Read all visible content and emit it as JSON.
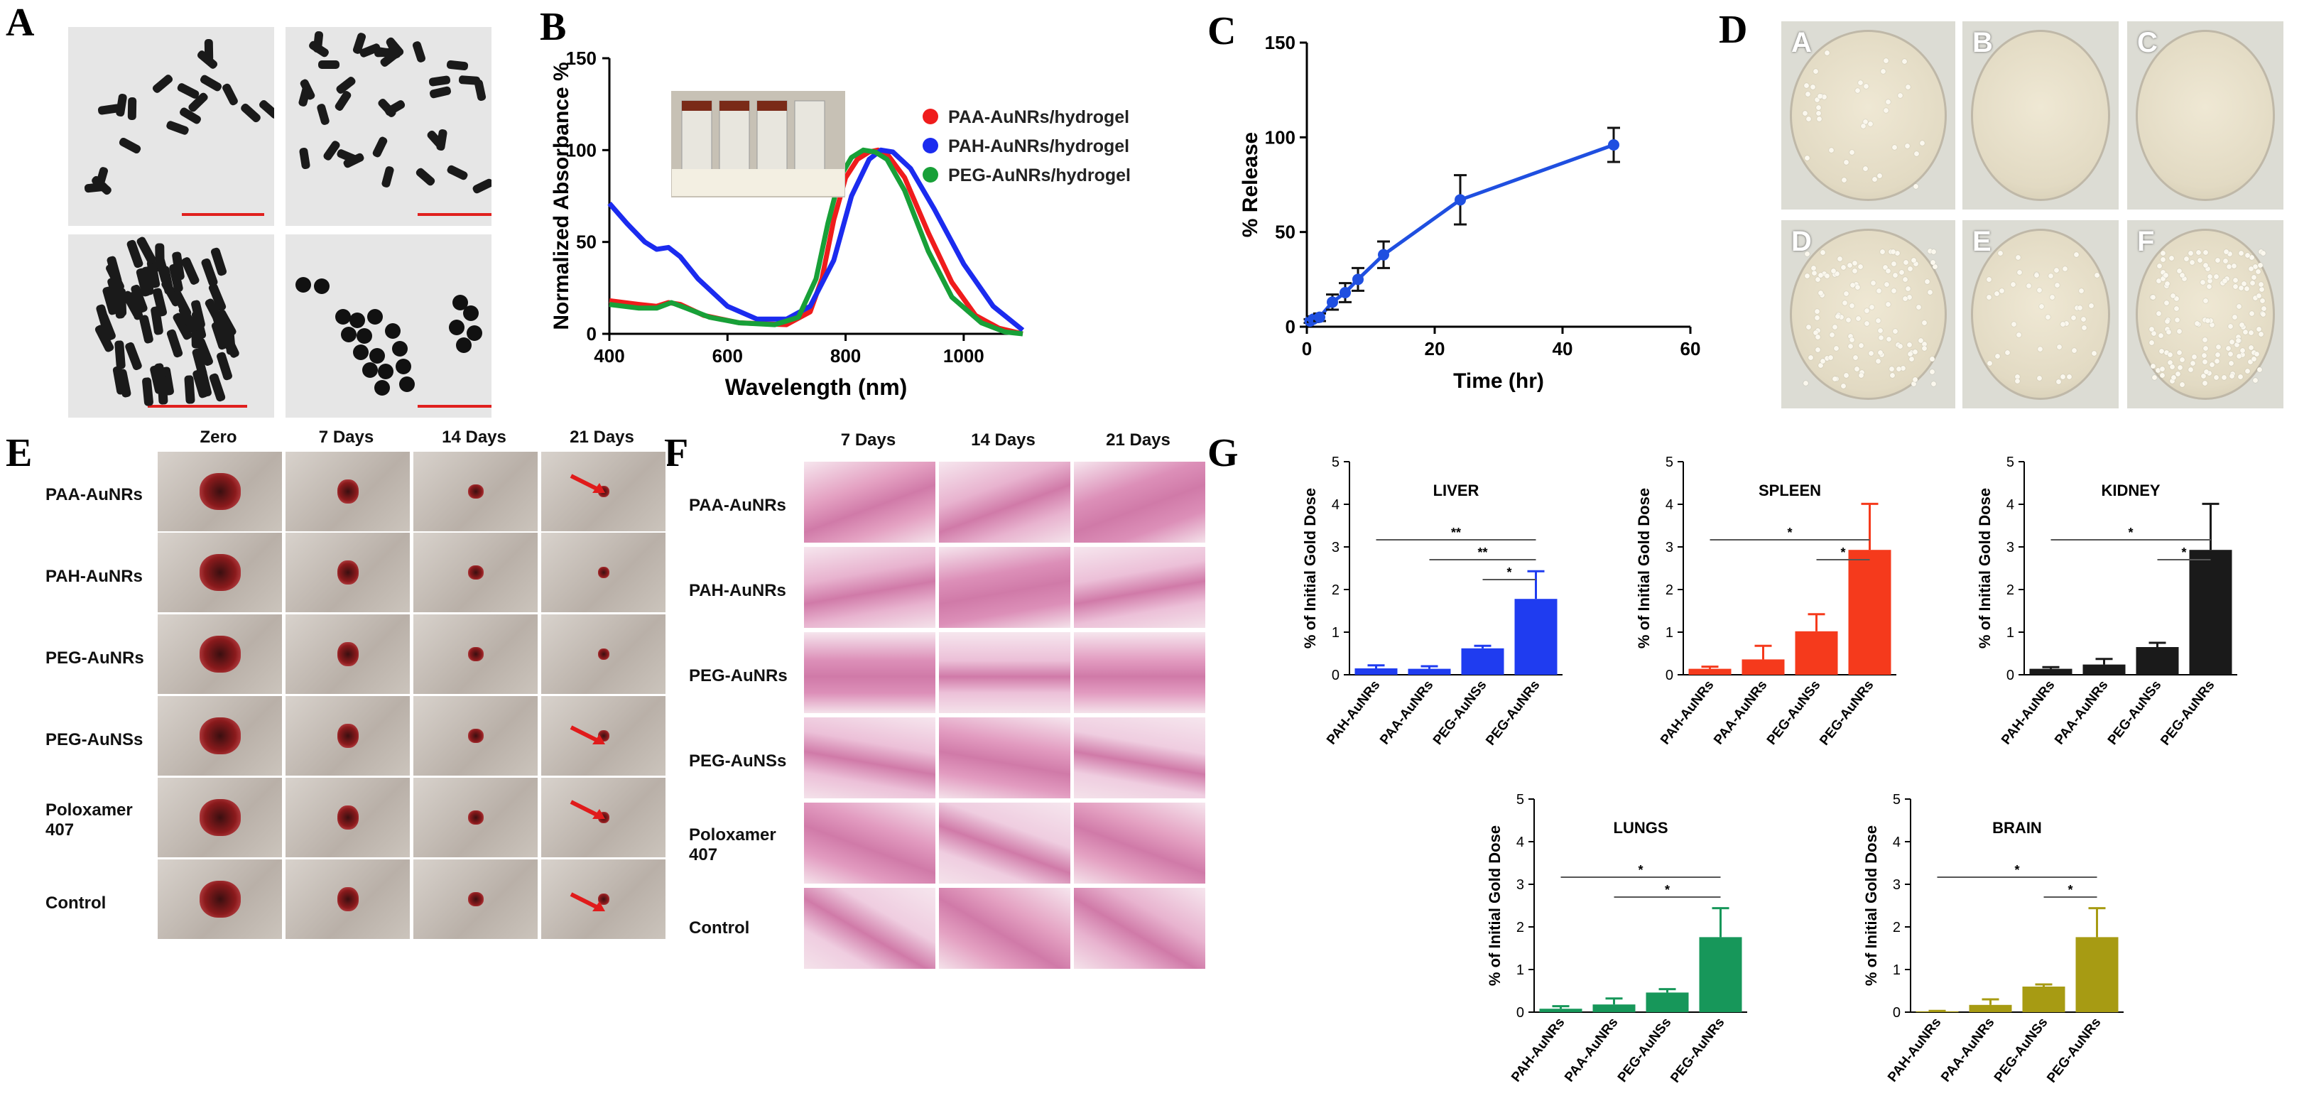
{
  "panel_letters": {
    "a": "A",
    "b": "B",
    "c": "C",
    "d": "D",
    "e": "E",
    "f": "F",
    "g": "G"
  },
  "colors": {
    "scale_bar": "#e0201e",
    "paa": "#ef1c1c",
    "pah": "#1b2bef",
    "peg": "#18a038",
    "blue_bar": "#1f3cf0",
    "red_bar": "#f53a1c",
    "black_bar": "#1a1a1a",
    "green_bar": "#17975a",
    "olive_bar": "#a79b13"
  },
  "panelB": {
    "chart_data": {
      "type": "line",
      "xlabel": "Wavelength (nm)",
      "ylabel": "Normalized Absorbance %",
      "xlim": [
        400,
        1100
      ],
      "ylim": [
        0,
        150
      ],
      "xticks": [
        "400",
        "600",
        "800",
        "1000"
      ],
      "yticks": [
        "0",
        "50",
        "100",
        "150"
      ],
      "series": [
        {
          "name": "PAA-AuNRs/hydrogel",
          "color": "#ef1c1c",
          "x": [
            400,
            450,
            480,
            500,
            520,
            560,
            620,
            700,
            740,
            760,
            780,
            800,
            820,
            840,
            855,
            870,
            900,
            940,
            980,
            1020,
            1060,
            1100
          ],
          "y": [
            18,
            16,
            15,
            17,
            16,
            10,
            6,
            5,
            12,
            30,
            62,
            85,
            95,
            99,
            100,
            98,
            85,
            55,
            28,
            10,
            3,
            0
          ]
        },
        {
          "name": "PAH-AuNRs/hydrogel",
          "color": "#1b2bef",
          "x": [
            400,
            430,
            460,
            480,
            500,
            520,
            550,
            600,
            650,
            700,
            740,
            780,
            810,
            840,
            860,
            880,
            910,
            950,
            1000,
            1050,
            1100
          ],
          "y": [
            71,
            60,
            50,
            46,
            47,
            42,
            30,
            15,
            8,
            8,
            15,
            40,
            75,
            95,
            100,
            99,
            90,
            68,
            38,
            15,
            2
          ]
        },
        {
          "name": "PEG-AuNRs/hydrogel",
          "color": "#18a038",
          "x": [
            400,
            450,
            480,
            505,
            530,
            570,
            620,
            680,
            720,
            750,
            770,
            790,
            810,
            830,
            850,
            870,
            900,
            940,
            980,
            1030,
            1070,
            1100
          ],
          "y": [
            16,
            14,
            14,
            17,
            14,
            9,
            6,
            5,
            9,
            30,
            60,
            85,
            96,
            100,
            99,
            95,
            78,
            45,
            20,
            6,
            1,
            0
          ]
        }
      ]
    }
  },
  "panelC": {
    "chart_data": {
      "type": "line",
      "xlabel": "Time (hr)",
      "ylabel": "% Release",
      "xlim": [
        0,
        60
      ],
      "ylim": [
        0,
        150
      ],
      "xticks": [
        "0",
        "20",
        "40",
        "60"
      ],
      "yticks": [
        "0",
        "50",
        "100",
        "150"
      ],
      "series": [
        {
          "name": "Release",
          "color": "#1f4fe0",
          "x": [
            0.5,
            1,
            2,
            4,
            6,
            8,
            12,
            24,
            48
          ],
          "y": [
            3,
            4,
            5,
            13,
            18,
            25,
            38,
            67,
            96
          ],
          "err": [
            1,
            1.5,
            2,
            4,
            5,
            6,
            7,
            13,
            9
          ]
        }
      ]
    }
  },
  "panelD": {
    "dishes": [
      "A",
      "B",
      "C",
      "D",
      "E",
      "F"
    ]
  },
  "panelE": {
    "columns": [
      "Zero",
      "7 Days",
      "14 Days",
      "21 Days"
    ],
    "rows": [
      "PAA-AuNRs",
      "PAH-AuNRs",
      "PEG-AuNRs",
      "PEG-AuNSs",
      "Poloxamer\n407",
      "Control"
    ]
  },
  "panelF": {
    "columns": [
      "7 Days",
      "14 Days",
      "21 Days"
    ],
    "rows": [
      "PAA-AuNRs",
      "PAH-AuNRs",
      "PEG-AuNRs",
      "PEG-AuNSs",
      "Poloxamer\n407",
      "Control"
    ]
  },
  "panelG": {
    "chart_data": [
      {
        "type": "bar",
        "title": "LIVER",
        "ylabel": "% of Initial Gold Dose",
        "ylim": [
          0,
          5
        ],
        "categories": [
          "PAH-AuNRs",
          "PAA-AuNRs",
          "PEG-AuNSs",
          "PEG-AuNRs"
        ],
        "values": [
          0.15,
          0.14,
          0.62,
          1.78
        ],
        "err": [
          0.07,
          0.06,
          0.06,
          0.65
        ],
        "color": "#1f3cf0",
        "sig": [
          [
            "**",
            0,
            3
          ],
          [
            "**",
            1,
            3
          ],
          [
            "*",
            2,
            3
          ]
        ]
      },
      {
        "type": "bar",
        "title": "SPLEEN",
        "ylabel": "% of Initial Gold Dose",
        "ylim": [
          0,
          5
        ],
        "categories": [
          "PAH-AuNRs",
          "PAA-AuNRs",
          "PEG-AuNSs",
          "PEG-AuNRs"
        ],
        "values": [
          0.14,
          0.36,
          1.02,
          2.93
        ],
        "err": [
          0.05,
          0.32,
          0.4,
          1.08
        ],
        "color": "#f53a1c",
        "sig": [
          [
            "*",
            0,
            3
          ],
          [
            "*",
            2,
            3
          ]
        ]
      },
      {
        "type": "bar",
        "title": "KIDNEY",
        "ylabel": "% of Initial Gold Dose",
        "ylim": [
          0,
          5
        ],
        "categories": [
          "PAH-AuNRs",
          "PAA-AuNRs",
          "PEG-AuNSs",
          "PEG-AuNRs"
        ],
        "values": [
          0.14,
          0.24,
          0.65,
          2.93
        ],
        "err": [
          0.04,
          0.13,
          0.1,
          1.08
        ],
        "color": "#1a1a1a",
        "sig": [
          [
            "*",
            0,
            3
          ],
          [
            "*",
            2,
            3
          ]
        ]
      },
      {
        "type": "bar",
        "title": "LUNGS",
        "ylabel": "% of Initial Gold Dose",
        "ylim": [
          0,
          5
        ],
        "categories": [
          "PAH-AuNRs",
          "PAA-AuNRs",
          "PEG-AuNSs",
          "PEG-AuNRs"
        ],
        "values": [
          0.08,
          0.18,
          0.46,
          1.76
        ],
        "err": [
          0.06,
          0.14,
          0.08,
          0.68
        ],
        "color": "#17975a",
        "sig": [
          [
            "*",
            0,
            3
          ],
          [
            "*",
            1,
            3
          ]
        ]
      },
      {
        "type": "bar",
        "title": "BRAIN",
        "ylabel": "% of Initial Gold Dose",
        "ylim": [
          0,
          5
        ],
        "categories": [
          "PAH-AuNRs",
          "PAA-AuNRs",
          "PEG-AuNSs",
          "PEG-AuNRs"
        ],
        "values": [
          0.02,
          0.17,
          0.6,
          1.76
        ],
        "err": [
          0.01,
          0.13,
          0.05,
          0.68
        ],
        "color": "#a79b13",
        "sig": [
          [
            "*",
            0,
            3
          ],
          [
            "*",
            2,
            3
          ]
        ]
      }
    ]
  }
}
